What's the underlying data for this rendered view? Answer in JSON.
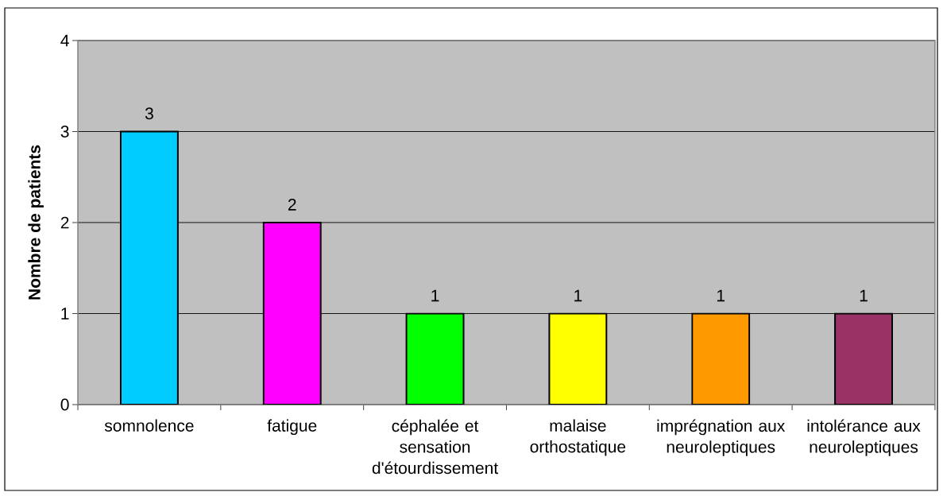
{
  "chart_data": {
    "type": "bar",
    "ylabel": "Nombre de patients",
    "categories": [
      "somnolence",
      "fatigue",
      "céphalée et sensation d'étourdissement",
      "malaise orthostatique",
      "imprégnation aux neuroleptiques",
      "intolérance aux neuroleptiques"
    ],
    "values": [
      3,
      2,
      1,
      1,
      1,
      1
    ],
    "colors": [
      "#00ccff",
      "#ff00ff",
      "#00ff00",
      "#ffff00",
      "#ff9900",
      "#993366"
    ],
    "ylim": [
      0,
      4
    ],
    "yticks": [
      0,
      1,
      2,
      3,
      4
    ],
    "grid": "y",
    "data_labels": true
  }
}
